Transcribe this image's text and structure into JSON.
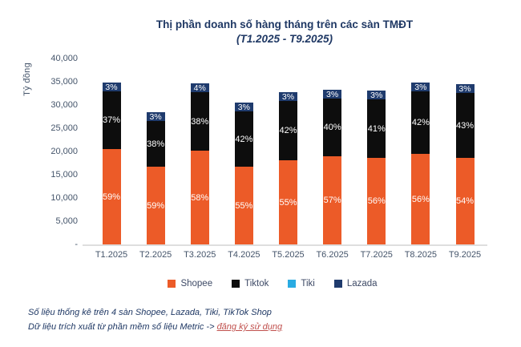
{
  "title": {
    "line1": "Thị phần doanh số hàng tháng trên các sàn TMĐT",
    "line2": "(T1.2025 - T9.2025)"
  },
  "chart_data": {
    "type": "bar",
    "stacked": true,
    "title": "Thị phần doanh số hàng tháng trên các sàn TMĐT",
    "subtitle": "(T1.2025 - T9.2025)",
    "ylabel": "Tỷ đồng",
    "ylim": [
      0,
      40000
    ],
    "ytick_labels": [
      "40,000",
      "35,000",
      "30,000",
      "25,000",
      "20,000",
      "15,000",
      "10,000",
      "5,000",
      "-"
    ],
    "grid": false,
    "legend_position": "bottom",
    "categories": [
      "T1.2025",
      "T2.2025",
      "T3.2025",
      "T4.2025",
      "T5.2025",
      "T6.2025",
      "T7.2025",
      "T8.2025",
      "T9.2025"
    ],
    "series": [
      {
        "name": "Shopee",
        "color": "#EC5B28",
        "percents": [
          59,
          59,
          58,
          55,
          55,
          57,
          56,
          56,
          54
        ]
      },
      {
        "name": "Tiktok",
        "color": "#0D0D0D",
        "percents": [
          37,
          38,
          38,
          42,
          42,
          40,
          41,
          42,
          43
        ]
      },
      {
        "name": "Lazada",
        "color": "#1F3B6D",
        "percents": [
          3,
          3,
          4,
          3,
          3,
          3,
          3,
          3,
          3
        ]
      }
    ],
    "totals_billion_vnd": [
      34800,
      28400,
      34700,
      30500,
      32800,
      33300,
      33100,
      34800,
      34500
    ],
    "legend": [
      {
        "label": "Shopee",
        "color": "#EC5B28"
      },
      {
        "label": "Tiktok",
        "color": "#0D0D0D"
      },
      {
        "label": "Tiki",
        "color": "#29ABE2"
      },
      {
        "label": "Lazada",
        "color": "#1F3B6D"
      }
    ]
  },
  "footer": {
    "line1": "Số liệu thống kê trên 4 sàn Shopee, Lazada, Tiki, TikTok Shop",
    "line2_prefix": "Dữ liệu trích xuất từ phần mềm số liệu Metric -> ",
    "link_text": "đăng ký sử dụng"
  },
  "colors": {
    "title": "#1F3864",
    "axis_text": "#44546A",
    "baseline": "#DEDEDE",
    "link": "#C0504D"
  }
}
